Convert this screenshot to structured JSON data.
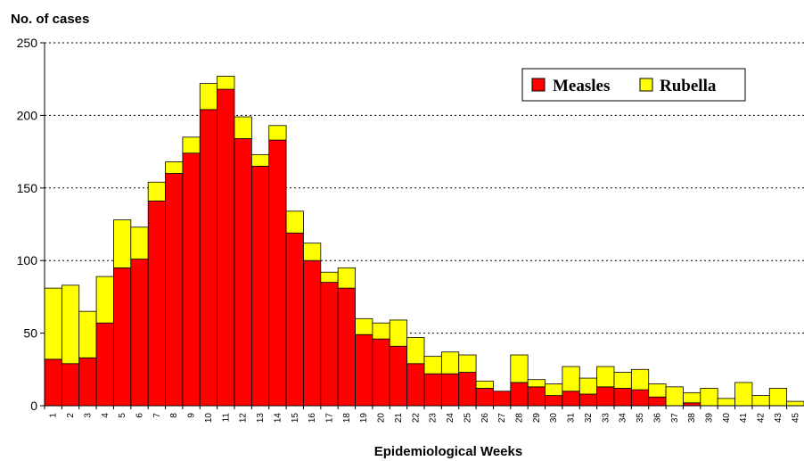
{
  "chart_data": {
    "type": "bar",
    "stacked": true,
    "ylabel": "No. of cases",
    "xlabel": "Epidemiological Weeks",
    "ylim": [
      0,
      250
    ],
    "yticks": [
      0,
      50,
      100,
      150,
      200,
      250
    ],
    "grid": "horizontal dotted",
    "legend_position": "top-right",
    "categories": [
      "1",
      "2",
      "3",
      "4",
      "5",
      "6",
      "7",
      "8",
      "9",
      "10",
      "11",
      "12",
      "13",
      "14",
      "15",
      "16",
      "17",
      "18",
      "19",
      "20",
      "21",
      "22",
      "23",
      "24",
      "25",
      "26",
      "27",
      "28",
      "29",
      "30",
      "31",
      "32",
      "33",
      "34",
      "35",
      "36",
      "37",
      "38",
      "39",
      "40",
      "41",
      "42",
      "43",
      "45"
    ],
    "series": [
      {
        "name": "Measles",
        "color": "#ff0000",
        "values": [
          32,
          29,
          33,
          57,
          95,
          101,
          141,
          160,
          174,
          204,
          218,
          184,
          165,
          183,
          119,
          100,
          85,
          81,
          49,
          46,
          41,
          29,
          22,
          22,
          23,
          12,
          10,
          16,
          13,
          7,
          10,
          8,
          13,
          12,
          11,
          6,
          0,
          2,
          0,
          0,
          0,
          0,
          0,
          0
        ]
      },
      {
        "name": "Rubella",
        "color": "#ffff00",
        "values": [
          49,
          54,
          32,
          32,
          33,
          22,
          13,
          8,
          11,
          18,
          9,
          15,
          8,
          10,
          15,
          12,
          7,
          14,
          11,
          11,
          18,
          18,
          12,
          15,
          12,
          5,
          0,
          19,
          5,
          8,
          17,
          11,
          14,
          11,
          14,
          9,
          13,
          7,
          12,
          5,
          16,
          7,
          12,
          3
        ]
      }
    ]
  }
}
